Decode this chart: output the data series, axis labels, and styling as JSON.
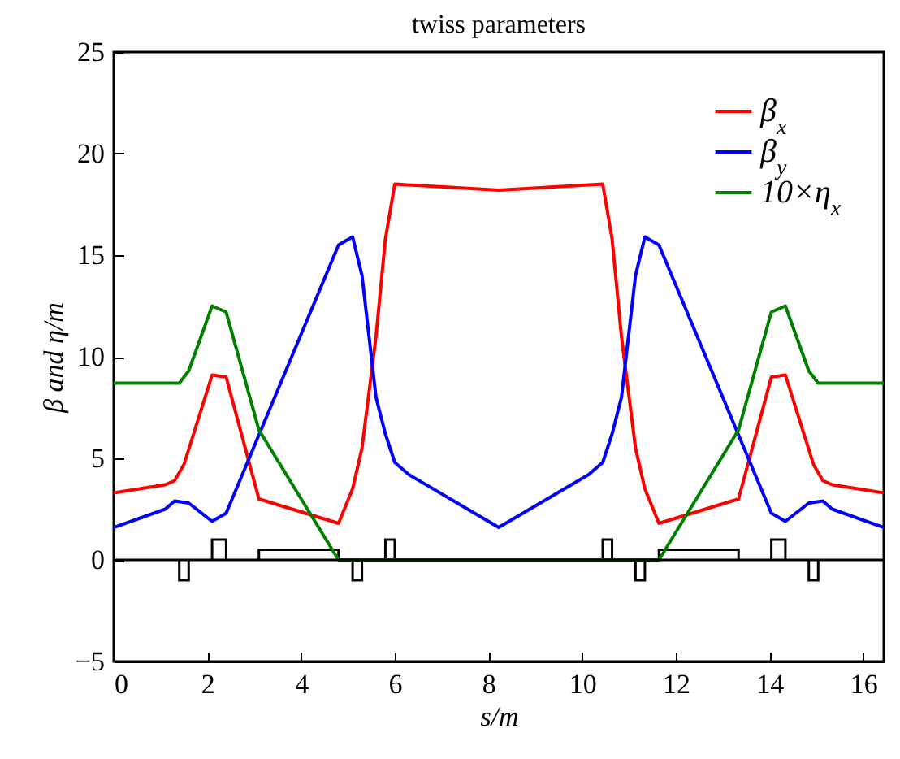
{
  "chart_data": {
    "type": "line",
    "title": "twiss parameters",
    "xlabel": "s/m",
    "ylabel": "β and η/m",
    "x": [
      0,
      1.1,
      1.3,
      1.5,
      2.1,
      2.4,
      3.1,
      4.8,
      5.1,
      5.3,
      5.6,
      5.8,
      6.0,
      8.22,
      10.44,
      10.64,
      10.84,
      11.14,
      11.34,
      11.64,
      13.34,
      14.04,
      14.34,
      14.94,
      15.14,
      15.34,
      16.44
    ],
    "series": [
      {
        "name": "β$_{x}$",
        "color": "#ff0000",
        "values": [
          3.3,
          3.7,
          3.9,
          4.7,
          9.1,
          9.0,
          3.0,
          1.8,
          3.5,
          5.5,
          11,
          15.8,
          18.5,
          18.2,
          18.5,
          15.8,
          11,
          5.5,
          3.5,
          1.8,
          3.0,
          9.0,
          9.1,
          4.7,
          3.9,
          3.7,
          3.3
        ]
      },
      {
        "name": "β$_{y}$",
        "color": "#0000ff",
        "x": [
          0,
          1.1,
          1.3,
          1.6,
          2.1,
          2.4,
          4.8,
          5.1,
          5.3,
          5.6,
          5.8,
          6.0,
          6.3,
          8.22,
          10.14,
          10.44,
          10.64,
          10.84,
          11.14,
          11.34,
          11.64,
          14.04,
          14.34,
          14.84,
          15.14,
          15.34,
          16.44
        ],
        "values": [
          1.6,
          2.5,
          2.9,
          2.8,
          1.9,
          2.3,
          15.5,
          15.9,
          14,
          8,
          6.2,
          4.8,
          4.2,
          1.6,
          4.2,
          4.8,
          6.2,
          8,
          14,
          15.9,
          15.5,
          2.3,
          1.9,
          2.8,
          2.9,
          2.5,
          1.6
        ]
      },
      {
        "name": "10×η$_{x}$",
        "color": "#008000",
        "x": [
          0,
          1.4,
          1.6,
          2.1,
          2.4,
          3.1,
          4.8,
          11.64,
          13.34,
          14.04,
          14.34,
          14.84,
          15.04,
          16.44
        ],
        "values": [
          8.7,
          8.7,
          9.3,
          12.5,
          12.2,
          6.4,
          0,
          0,
          6.4,
          12.2,
          12.5,
          9.3,
          8.7,
          8.7
        ]
      }
    ],
    "xlim": [
      0,
      16.44
    ],
    "xticks": [
      0,
      2,
      4,
      6,
      8,
      10,
      12,
      14,
      16
    ],
    "ylim": [
      -5,
      25
    ],
    "yticks": [
      -5,
      0,
      5,
      10,
      15,
      20,
      25
    ],
    "ref_lines": [
      {
        "axis": "y",
        "value": 0,
        "color": "#000000"
      }
    ],
    "grid": false,
    "legend": "top right"
  }
}
